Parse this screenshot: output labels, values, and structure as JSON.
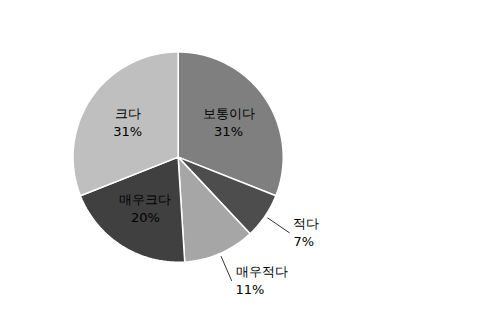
{
  "chart_data": {
    "type": "pie",
    "categories": [
      "보통이다",
      "적다",
      "매우적다",
      "매우크다",
      "크다"
    ],
    "values": [
      31,
      7,
      11,
      20,
      31
    ],
    "value_labels": [
      "31%",
      "7%",
      "11%",
      "20%",
      "31%"
    ],
    "colors": [
      "#7f7f7f",
      "#4d4d4d",
      "#a6a6a6",
      "#404040",
      "#bfbfbf"
    ],
    "data_labels": true
  }
}
